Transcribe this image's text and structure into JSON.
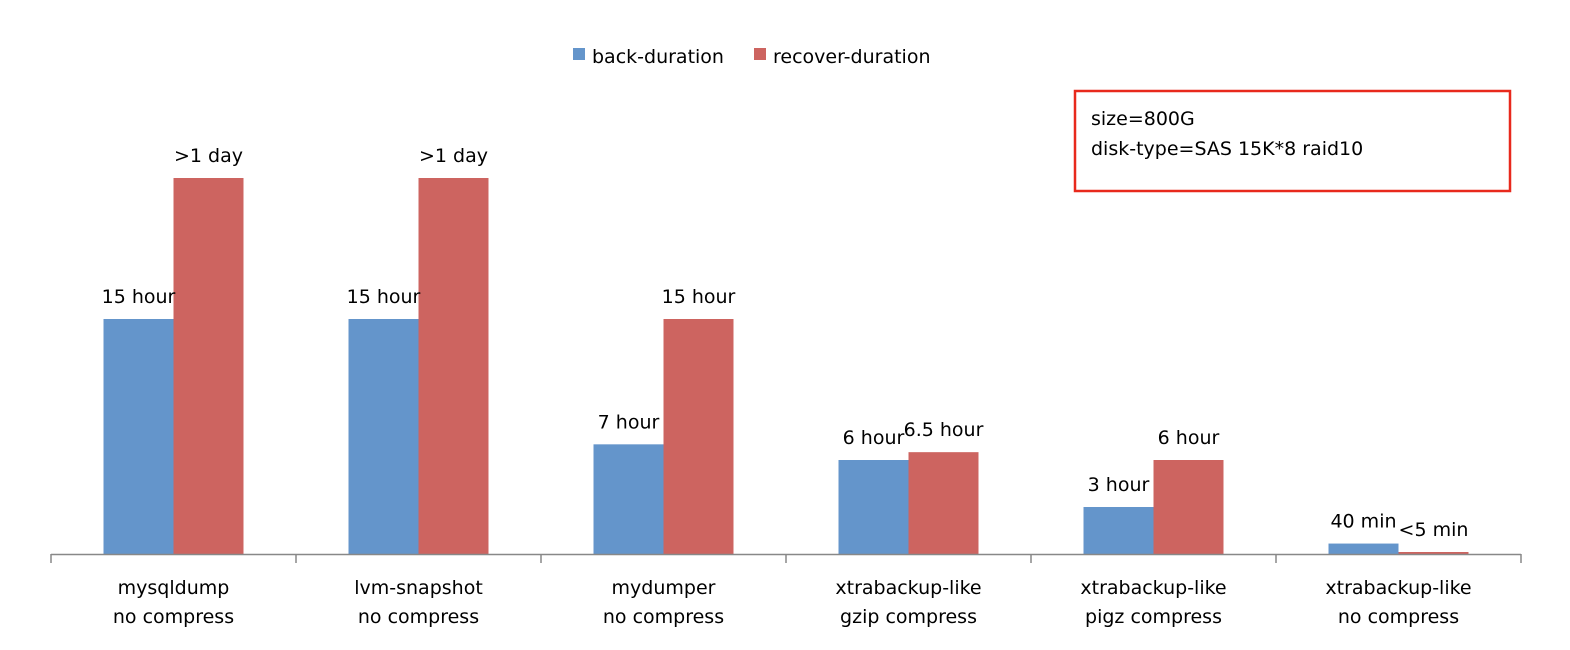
{
  "chart_data": {
    "type": "bar",
    "categories": [
      [
        "mysqldump",
        "no compress"
      ],
      [
        "lvm-snapshot",
        "no compress"
      ],
      [
        "mydumper",
        "no compress"
      ],
      [
        "xtrabackup-like",
        "gzip compress"
      ],
      [
        "xtrabackup-like",
        "pigz compress"
      ],
      [
        "xtrabackup-like",
        "no compress"
      ]
    ],
    "value_unit": "hour",
    "ylim": [
      0,
      30
    ],
    "grid": false,
    "legend_position": "top",
    "series": [
      {
        "name": "back-duration",
        "color": "#6495CB",
        "values": [
          15,
          15,
          7,
          6,
          3,
          0.6667
        ],
        "labels": [
          "15 hour",
          "15 hour",
          "7 hour",
          "6 hour",
          "3 hour",
          "40 min"
        ]
      },
      {
        "name": "recover-duration",
        "color": "#CD6460",
        "values": [
          24,
          24,
          15,
          6.5,
          6,
          0.08
        ],
        "labels": [
          ">1 day",
          ">1 day",
          "15 hour",
          "6.5 hour",
          "6 hour",
          "<5 min"
        ]
      }
    ],
    "annotation": {
      "lines": [
        "size=800G",
        "disk-type=SAS 15K*8 raid10"
      ],
      "border_color": "#E8291C"
    },
    "axis_color": "#888888"
  }
}
